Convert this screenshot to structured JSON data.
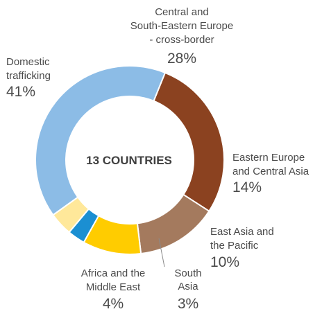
{
  "chart_data": {
    "type": "pie",
    "center_label": "13 COUNTRIES",
    "slices": [
      {
        "name_lines": [
          "Central and",
          "South-Eastern Europe",
          "- cross-border"
        ],
        "value": 28,
        "value_label": "28%",
        "color": "#8b4220"
      },
      {
        "name_lines": [
          "Eastern Europe",
          "and Central Asia"
        ],
        "value": 14,
        "value_label": "14%",
        "color": "#a47a5e"
      },
      {
        "name_lines": [
          "East Asia and",
          "the Pacific"
        ],
        "value": 10,
        "value_label": "10%",
        "color": "#ffcc00"
      },
      {
        "name_lines": [
          "South",
          "Asia"
        ],
        "value": 3,
        "value_label": "3%",
        "color": "#1b8fd2"
      },
      {
        "name_lines": [
          "Africa and the",
          "Middle East"
        ],
        "value": 4,
        "value_label": "4%",
        "color": "#ffe89a"
      },
      {
        "name_lines": [
          "Domestic",
          "trafficking"
        ],
        "value": 41,
        "value_label": "41%",
        "color": "#8cbce6"
      }
    ]
  }
}
